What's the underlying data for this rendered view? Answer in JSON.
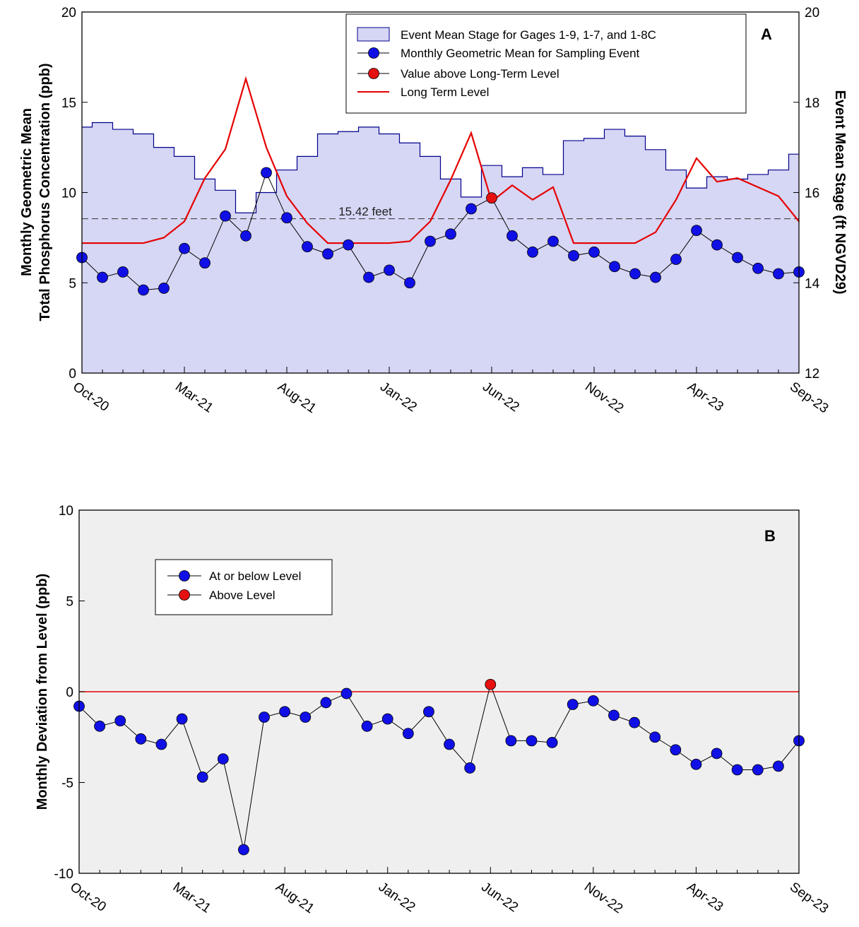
{
  "chart_data": [
    {
      "panel": "A",
      "type": "line",
      "panel_label": "A",
      "x_tick_labels": [
        "Oct-20",
        "Mar-21",
        "Aug-21",
        "Jan-22",
        "Jun-22",
        "Nov-22",
        "Apr-23",
        "Sep-23"
      ],
      "x_months": [
        "Oct-20",
        "Nov-20",
        "Dec-20",
        "Jan-21",
        "Feb-21",
        "Mar-21",
        "Apr-21",
        "May-21",
        "Jun-21",
        "Jul-21",
        "Aug-21",
        "Sep-21",
        "Oct-21",
        "Nov-21",
        "Dec-21",
        "Jan-22",
        "Feb-22",
        "Mar-22",
        "Apr-22",
        "May-22",
        "Jun-22",
        "Jul-22",
        "Aug-22",
        "Sep-22",
        "Oct-22",
        "Nov-22",
        "Dec-22",
        "Jan-23",
        "Feb-23",
        "Mar-23",
        "Apr-23",
        "May-23",
        "Jun-23",
        "Jul-23",
        "Aug-23",
        "Sep-23"
      ],
      "ylabel_left_line1": "Monthly Geometric Mean",
      "ylabel_left_line2": "Total Phosphorus Concentration (ppb)",
      "ylabel_right": "Event Mean Stage (ft NGVD29)",
      "ylim_left": [
        0,
        20
      ],
      "ylim_right": [
        12,
        20
      ],
      "left_ticks": [
        "0",
        "5",
        "10",
        "15",
        "20"
      ],
      "right_ticks": [
        "12",
        "14",
        "16",
        "18",
        "20"
      ],
      "legend_position": "top-right",
      "reference_line": {
        "axis": "right",
        "value": 15.42,
        "label": "15.42 feet"
      },
      "series": [
        {
          "name": "Event Mean Stage for Gages 1-9, 1-7, and 1-8C",
          "kind": "step-area",
          "axis": "right",
          "fill_color": "#d6d6f5",
          "line_color": "#00008b",
          "values": [
            17.45,
            17.55,
            17.4,
            17.3,
            17.0,
            16.8,
            16.3,
            16.05,
            15.55,
            16.0,
            16.5,
            16.8,
            17.3,
            17.35,
            17.45,
            17.3,
            17.1,
            16.8,
            16.3,
            15.9,
            16.6,
            16.35,
            16.55,
            16.4,
            17.15,
            17.2,
            17.4,
            17.25,
            16.95,
            16.5,
            16.1,
            16.35,
            16.3,
            16.4,
            16.5,
            16.85
          ]
        },
        {
          "name": "Monthly Geometric Mean for Sampling Event",
          "kind": "line-markers",
          "axis": "left",
          "marker_color": "#1010e6",
          "values": [
            6.4,
            5.3,
            5.6,
            4.6,
            4.7,
            6.9,
            6.1,
            8.7,
            7.6,
            11.1,
            8.6,
            7.0,
            6.6,
            7.1,
            5.3,
            5.7,
            5.0,
            7.3,
            7.7,
            9.1,
            9.7,
            7.6,
            6.7,
            7.3,
            6.5,
            6.7,
            5.9,
            5.5,
            5.3,
            6.3,
            7.9,
            7.1,
            6.4,
            5.8,
            5.5,
            5.6
          ]
        },
        {
          "name": "Value above Long-Term Level",
          "kind": "marker",
          "axis": "left",
          "marker_color": "#e61010",
          "points": [
            {
              "x": "Jun-22",
              "y": 9.7
            }
          ]
        },
        {
          "name": "Long Term Level",
          "kind": "line",
          "axis": "left",
          "line_color": "#e60000",
          "values": [
            7.2,
            7.2,
            7.2,
            7.2,
            7.5,
            8.4,
            10.8,
            12.4,
            16.3,
            12.5,
            9.8,
            8.3,
            7.2,
            7.2,
            7.2,
            7.2,
            7.3,
            8.4,
            10.7,
            13.3,
            9.5,
            10.4,
            9.6,
            10.3,
            7.2,
            7.2,
            7.2,
            7.2,
            7.8,
            9.6,
            11.9,
            10.6,
            10.8,
            10.3,
            9.8,
            8.4
          ]
        }
      ]
    },
    {
      "panel": "B",
      "type": "line",
      "panel_label": "B",
      "x_tick_labels": [
        "Oct-20",
        "Mar-21",
        "Aug-21",
        "Jan-22",
        "Jun-22",
        "Nov-22",
        "Apr-23",
        "Sep-23"
      ],
      "ylabel": "Monthly Deviation from Level (ppb)",
      "ylim": [
        -10,
        10
      ],
      "y_ticks": [
        "-10",
        "-5",
        "0",
        "5",
        "10"
      ],
      "background_color": "#efefef",
      "zero_line_color": "#e60000",
      "legend_position": "upper-left",
      "series": [
        {
          "name": "At or below Level",
          "marker_color": "#1010e6",
          "values": [
            -0.8,
            -1.9,
            -1.6,
            -2.6,
            -2.9,
            -1.5,
            -4.7,
            -3.7,
            -8.7,
            -1.4,
            -1.1,
            -1.4,
            -0.6,
            -0.1,
            -1.9,
            -1.5,
            -2.3,
            -1.1,
            -2.9,
            -4.2,
            null,
            -2.7,
            -2.7,
            -2.8,
            -0.7,
            -0.5,
            -1.3,
            -1.7,
            -2.5,
            -3.2,
            -4.0,
            -3.4,
            -4.3,
            -4.3,
            -4.1,
            -2.7
          ]
        },
        {
          "name": "Above Level",
          "marker_color": "#e61010",
          "points": [
            {
              "x": "Jun-22",
              "y": 0.4
            }
          ]
        }
      ]
    }
  ]
}
